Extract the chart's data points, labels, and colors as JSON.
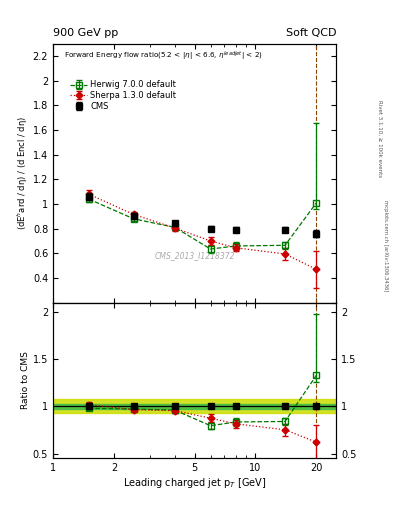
{
  "title_left": "900 GeV pp",
  "title_right": "Soft QCD",
  "ylabel_main": "(dE$^{h}$ard / dη) / (d Encl / dη)",
  "ylabel_ratio": "Ratio to CMS",
  "xlabel": "Leading charged jet p$_{T}$ [GeV]",
  "right_label_top": "Rivet 3.1.10, ≥ 100k events",
  "right_label_bottom": "mcplots.cern.ch [arXiv:1306.3436]",
  "watermark": "CMS_2013_I1218372",
  "cms_x": [
    1.5,
    2.5,
    4.0,
    6.0,
    8.0,
    14.0,
    20.0
  ],
  "cms_y": [
    1.06,
    0.905,
    0.845,
    0.8,
    0.79,
    0.79,
    0.76
  ],
  "cms_yerr": [
    0.03,
    0.025,
    0.02,
    0.02,
    0.02,
    0.02,
    0.03
  ],
  "herwig_x": [
    1.5,
    2.5,
    4.0,
    6.0,
    8.0,
    14.0,
    20.0
  ],
  "herwig_y": [
    1.04,
    0.88,
    0.81,
    0.635,
    0.66,
    0.665,
    1.01
  ],
  "herwig_yerr_lo": [
    0.02,
    0.02,
    0.02,
    0.03,
    0.03,
    0.03,
    0.05
  ],
  "herwig_yerr_hi": [
    0.02,
    0.02,
    0.02,
    0.03,
    0.03,
    0.03,
    0.65
  ],
  "sherpa_x": [
    1.5,
    2.5,
    4.0,
    6.0,
    8.0,
    14.0,
    20.0
  ],
  "sherpa_y": [
    1.08,
    0.915,
    0.805,
    0.7,
    0.645,
    0.595,
    0.47
  ],
  "sherpa_yerr_lo": [
    0.03,
    0.02,
    0.02,
    0.03,
    0.03,
    0.05,
    0.15
  ],
  "sherpa_yerr_hi": [
    0.03,
    0.02,
    0.02,
    0.03,
    0.03,
    0.05,
    0.15
  ],
  "ratio_herwig_y": [
    0.98,
    0.972,
    0.96,
    0.795,
    0.835,
    0.84,
    1.33
  ],
  "ratio_herwig_yerr_lo": [
    0.02,
    0.025,
    0.025,
    0.04,
    0.04,
    0.04,
    0.07
  ],
  "ratio_herwig_yerr_hi": [
    0.02,
    0.025,
    0.025,
    0.04,
    0.04,
    0.04,
    0.65
  ],
  "ratio_sherpa_y": [
    1.02,
    0.965,
    0.955,
    0.875,
    0.815,
    0.752,
    0.62
  ],
  "ratio_sherpa_yerr_lo": [
    0.03,
    0.025,
    0.025,
    0.04,
    0.04,
    0.065,
    0.18
  ],
  "ratio_sherpa_yerr_hi": [
    0.03,
    0.025,
    0.025,
    0.04,
    0.04,
    0.065,
    0.18
  ],
  "cms_band_inner_lo": 0.97,
  "cms_band_inner_hi": 1.03,
  "cms_band_outer_lo": 0.925,
  "cms_band_outer_hi": 1.075,
  "cms_color": "#000000",
  "herwig_color": "#007700",
  "sherpa_color": "#cc0000",
  "band_inner_color": "#44bb44",
  "band_outer_color": "#ccdd00",
  "main_ylim": [
    0.2,
    2.3
  ],
  "ratio_ylim": [
    0.45,
    2.1
  ],
  "xlim": [
    1.0,
    25.0
  ]
}
